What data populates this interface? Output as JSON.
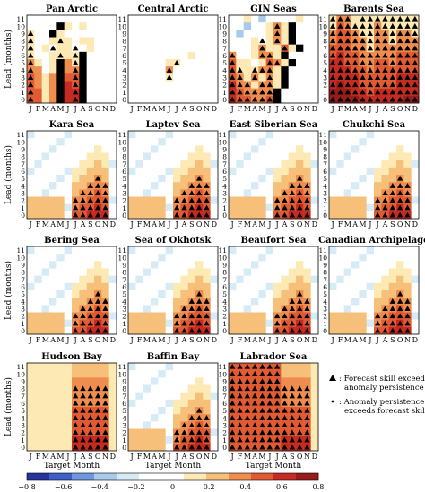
{
  "chart_data": {
    "type": "heatmap",
    "ylabel": "Lead (months)",
    "xlabel": "Target Month",
    "x_ticks": [
      "J",
      "F",
      "M",
      "A",
      "M",
      "J",
      "J",
      "A",
      "S",
      "O",
      "N",
      "D"
    ],
    "y_ticks": [
      "0",
      "1",
      "2",
      "3",
      "4",
      "5",
      "6",
      "7",
      "8",
      "9",
      "10",
      "11"
    ],
    "color_scale": {
      "ticks": [
        "−0.8",
        "−0.6",
        "−0.4",
        "−0.2",
        "0",
        "0.2",
        "0.4",
        "0.6",
        "0.8"
      ],
      "min": -0.8,
      "max": 0.8,
      "colors": [
        "#27339a",
        "#3f5fc8",
        "#6f98dc",
        "#a8cbe9",
        "#d6ebf6",
        "#ffffff",
        "#ffffff",
        "#fde9b4",
        "#f6c07a",
        "#ef8d4f",
        "#e05a34",
        "#c62b22",
        "#991c1c"
      ]
    },
    "legend": {
      "triangle_text": ": Forecast skill exceeds anomaly persistence",
      "dot_text": ": Anomaly persistence exceeds forecast skill"
    },
    "panels": [
      {
        "name": "Pan Arctic",
        "rows": [
          "000000000000",
          "00-1-1++1010",
          "+1-1-1++1000",
          "+1001+11011",
          "+101+011+001",
          "+1001+11+1++",
          "+2101++2+1++",
          "+2201++2+2++",
          "+3212++3+3++",
          "+3212++4+3++",
          "+3312++4+4++",
          "+3312++4+4++"
        ]
      },
      {
        "name": "Central Arctic",
        "rows": [
          "000000000000",
          "000000000000",
          "000000000000",
          "000000000000",
          "000000000000",
          "000000001000",
          "000001+10000",
          "00000+200000",
          "00000+100000",
          "000000000000",
          "000000000000",
          "000000000000"
        ]
      },
      {
        "name": "GIN Seas",
        "rows": [
          "001-1-2-10001",
          "0-1-2-1-11+21+",
          "-1-2-1-101+21+",
          "-1-101+01+21+",
          "0001+211+31+",
          "+2001+2+21+",
          "+31101+3+21+",
          "+3+11+1+2+21+",
          "+3+21+21+21+",
          "+4+2+21+2+21+",
          "+4+3+2+2+2+2+",
          "+4+3+3+2+2+3+"
        ]
      },
      {
        "name": "Barents Sea",
        "rows": [
          "+1+2+21+1+1+1+1+1+1+1+1",
          "+1+3+2+1+1+1+2+1+1+1+1+1",
          "+2+3+3+2+1+1+2+2+1+2+2+1",
          "+2+3+3+2+2+1+2+2+1+2+2+2",
          "+3+3+3+2+2+1+2+2+2+2+2+2",
          "+3+4+3+3+2+2+2+2+2+3+3+3",
          "+4+4+3+3+2+2+3+3+2+3+3+3",
          "+4+4+4+3+3+2+3+3+3+3+3+3",
          "+4+4+4+4+3+3+3+3+3+4+4+4",
          "+4+5+4+4+3+3+3+3+3+4+4+4",
          "+5+5+5+4+4+3+4+4+4+4+4+4",
          "+5+5+5+5+4+4+4+4+4+4+5+5"
        ]
      }
    ]
  }
}
